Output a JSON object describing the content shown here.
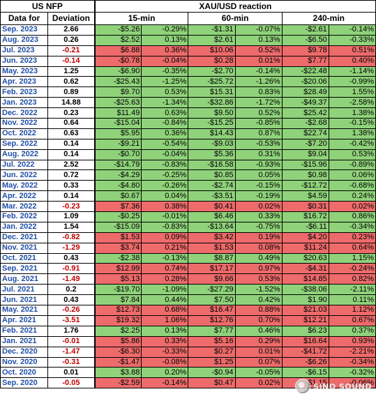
{
  "header": {
    "nfp": "US NFP",
    "reaction": "XAU/USD reaction",
    "date_for": "Data for",
    "deviation": "Deviation",
    "win15": "15-min",
    "win60": "60-min",
    "win240": "240-min"
  },
  "colors": {
    "up": "#8fd27a",
    "down": "#ee6b6b",
    "date_text": "#1f4ea8",
    "negative_deviation": "#c00000"
  },
  "rows": [
    {
      "date": "Sep. 2023",
      "dev": "2.66",
      "m15": "-$5.26",
      "p15": "-0.29%",
      "m60": "-$1.31",
      "p60": "-0.07%",
      "m240": "-$2.61",
      "p240": "-0.14%",
      "c15": "up",
      "c60": "up",
      "c240": "up"
    },
    {
      "date": "Aug. 2023",
      "dev": "0.26",
      "m15": "$2.52",
      "p15": "0.13%",
      "m60": "$2.61",
      "p60": "0.13%",
      "m240": "-$6.50",
      "p240": "-0.33%",
      "c15": "up",
      "c60": "up",
      "c240": "up"
    },
    {
      "date": "Jul. 2023",
      "dev": "-0.21",
      "m15": "$6.88",
      "p15": "0.36%",
      "m60": "$10.06",
      "p60": "0.52%",
      "m240": "$9.78",
      "p240": "0.51%",
      "c15": "down",
      "c60": "down",
      "c240": "down"
    },
    {
      "date": "Jun. 2023",
      "dev": "-0.14",
      "m15": "-$0.78",
      "p15": "-0.04%",
      "m60": "$0.28",
      "p60": "0.01%",
      "m240": "$7.77",
      "p240": "0.40%",
      "c15": "down",
      "c60": "down",
      "c240": "down"
    },
    {
      "date": "May. 2023",
      "dev": "1.25",
      "m15": "-$6.90",
      "p15": "-0.35%",
      "m60": "-$2.70",
      "p60": "-0.14%",
      "m240": "-$22.48",
      "p240": "-1.14%",
      "c15": "up",
      "c60": "up",
      "c240": "up"
    },
    {
      "date": "Apr. 2023",
      "dev": "0.62",
      "m15": "-$25.43",
      "p15": "-1.25%",
      "m60": "-$25.72",
      "p60": "-1.26%",
      "m240": "-$20.06",
      "p240": "-0.99%",
      "c15": "up",
      "c60": "up",
      "c240": "up"
    },
    {
      "date": "Feb. 2023",
      "dev": "0.89",
      "m15": "$9.70",
      "p15": "0.53%",
      "m60": "$15.31",
      "p60": "0.83%",
      "m240": "$28.49",
      "p240": "1.55%",
      "c15": "up",
      "c60": "up",
      "c240": "up"
    },
    {
      "date": "Jan. 2023",
      "dev": "14.88",
      "m15": "-$25.63",
      "p15": "-1.34%",
      "m60": "-$32.86",
      "p60": "-1.72%",
      "m240": "-$49.37",
      "p240": "-2.58%",
      "c15": "up",
      "c60": "up",
      "c240": "up"
    },
    {
      "date": "Dec. 2022",
      "dev": "0.23",
      "m15": "$11.49",
      "p15": "0.63%",
      "m60": "$9.50",
      "p60": "0.52%",
      "m240": "$25.42",
      "p240": "1.38%",
      "c15": "up",
      "c60": "up",
      "c240": "up"
    },
    {
      "date": "Nov. 2022",
      "dev": "0.64",
      "m15": "-$15.04",
      "p15": "-0.84%",
      "m60": "-$15.25",
      "p60": "-0.85%",
      "m240": "-$2.68",
      "p240": "-0.15%",
      "c15": "up",
      "c60": "up",
      "c240": "up"
    },
    {
      "date": "Oct. 2022",
      "dev": "0.63",
      "m15": "$5.95",
      "p15": "0.36%",
      "m60": "$14.43",
      "p60": "0.87%",
      "m240": "$22.74",
      "p240": "1.38%",
      "c15": "up",
      "c60": "up",
      "c240": "up"
    },
    {
      "date": "Sep. 2022",
      "dev": "0.14",
      "m15": "-$9.21",
      "p15": "-0.54%",
      "m60": "-$9.03",
      "p60": "-0.53%",
      "m240": "-$7.20",
      "p240": "-0.42%",
      "c15": "up",
      "c60": "up",
      "c240": "up"
    },
    {
      "date": "Aug. 2022",
      "dev": "0.14",
      "m15": "-$0.70",
      "p15": "-0.04%",
      "m60": "$5.36",
      "p60": "0.31%",
      "m240": "$9.04",
      "p240": "0.53%",
      "c15": "up",
      "c60": "up",
      "c240": "up"
    },
    {
      "date": "Jul. 2022",
      "dev": "2.52",
      "m15": "-$14.79",
      "p15": "-0.83%",
      "m60": "-$16.58",
      "p60": "-0.93%",
      "m240": "-$15.96",
      "p240": "-0.89%",
      "c15": "up",
      "c60": "up",
      "c240": "up"
    },
    {
      "date": "Jun. 2022",
      "dev": "0.72",
      "m15": "-$4.29",
      "p15": "-0.25%",
      "m60": "$0.85",
      "p60": "0.05%",
      "m240": "$0.98",
      "p240": "0.06%",
      "c15": "up",
      "c60": "up",
      "c240": "up"
    },
    {
      "date": "May. 2022",
      "dev": "0.33",
      "m15": "-$4.80",
      "p15": "-0.26%",
      "m60": "-$2.74",
      "p60": "-0.15%",
      "m240": "-$12.72",
      "p240": "-0.68%",
      "c15": "up",
      "c60": "up",
      "c240": "up"
    },
    {
      "date": "Apr. 2022",
      "dev": "0.14",
      "m15": "$0.67",
      "p15": "0.04%",
      "m60": "-$3.51",
      "p60": "-0.19%",
      "m240": "$4.59",
      "p240": "0.24%",
      "c15": "up",
      "c60": "up",
      "c240": "up"
    },
    {
      "date": "Mar. 2022",
      "dev": "-0.23",
      "m15": "$7.36",
      "p15": "0.38%",
      "m60": "$0.41",
      "p60": "0.02%",
      "m240": "$0.31",
      "p240": "0.02%",
      "c15": "down",
      "c60": "down",
      "c240": "down"
    },
    {
      "date": "Feb. 2022",
      "dev": "1.09",
      "m15": "-$0.25",
      "p15": "-0.01%",
      "m60": "$6.46",
      "p60": "0.33%",
      "m240": "$16.72",
      "p240": "0.86%",
      "c15": "up",
      "c60": "up",
      "c240": "up"
    },
    {
      "date": "Jan. 2022",
      "dev": "1.54",
      "m15": "-$15.09",
      "p15": "-0.83%",
      "m60": "-$13.64",
      "p60": "-0.75%",
      "m240": "-$6.11",
      "p240": "-0.34%",
      "c15": "up",
      "c60": "up",
      "c240": "up"
    },
    {
      "date": "Dec. 2021",
      "dev": "-0.82",
      "m15": "$1.53",
      "p15": "0.09%",
      "m60": "$3.42",
      "p60": "0.19%",
      "m240": "$4.20",
      "p240": "0.23%",
      "c15": "down",
      "c60": "down",
      "c240": "down"
    },
    {
      "date": "Nov. 2021",
      "dev": "-1.29",
      "m15": "$3.74",
      "p15": "0.21%",
      "m60": "$1.53",
      "p60": "0.08%",
      "m240": "$11.24",
      "p240": "0.64%",
      "c15": "down",
      "c60": "down",
      "c240": "down"
    },
    {
      "date": "Oct. 2021",
      "dev": "0.43",
      "m15": "-$2.38",
      "p15": "-0.13%",
      "m60": "$8.87",
      "p60": "0.49%",
      "m240": "$20.63",
      "p240": "1.15%",
      "c15": "up",
      "c60": "up",
      "c240": "up"
    },
    {
      "date": "Sep. 2021",
      "dev": "-0.91",
      "m15": "$12.99",
      "p15": "0.74%",
      "m60": "$17.17",
      "p60": "0.97%",
      "m240": "-$4.31",
      "p240": "-0.24%",
      "c15": "down",
      "c60": "down",
      "c240": "down"
    },
    {
      "date": "Aug. 2021",
      "dev": "-1.49",
      "m15": "$5.13",
      "p15": "0.28%",
      "m60": "$9.66",
      "p60": "0.53%",
      "m240": "$14.85",
      "p240": "0.82%",
      "c15": "down",
      "c60": "down",
      "c240": "down"
    },
    {
      "date": "Jul. 2021",
      "dev": "0.2",
      "m15": "-$19.70",
      "p15": "-1.09%",
      "m60": "-$27.29",
      "p60": "-1.52%",
      "m240": "-$38.06",
      "p240": "-2.11%",
      "c15": "up",
      "c60": "up",
      "c240": "up"
    },
    {
      "date": "Jun. 2021",
      "dev": "0.43",
      "m15": "$7.84",
      "p15": "0.44%",
      "m60": "$7.50",
      "p60": "0.42%",
      "m240": "$1.90",
      "p240": "0.11%",
      "c15": "up",
      "c60": "up",
      "c240": "up"
    },
    {
      "date": "May. 2021",
      "dev": "-0.26",
      "m15": "$12.73",
      "p15": "0.68%",
      "m60": "$16.47",
      "p60": "0.88%",
      "m240": "$21.03",
      "p240": "1.12%",
      "c15": "down",
      "c60": "down",
      "c240": "down"
    },
    {
      "date": "Apr. 2021",
      "dev": "-3.51",
      "m15": "$19.32",
      "p15": "1.06%",
      "m60": "$12.76",
      "p60": "0.70%",
      "m240": "$12.21",
      "p240": "0.67%",
      "c15": "down",
      "c60": "down",
      "c240": "down"
    },
    {
      "date": "Feb. 2021",
      "dev": "1.76",
      "m15": "$2.25",
      "p15": "0.13%",
      "m60": "$7.77",
      "p60": "0.46%",
      "m240": "$6.23",
      "p240": "0.37%",
      "c15": "up",
      "c60": "up",
      "c240": "up"
    },
    {
      "date": "Jan. 2021",
      "dev": "-0.01",
      "m15": "$5.86",
      "p15": "0.33%",
      "m60": "$5.16",
      "p60": "0.29%",
      "m240": "$16.64",
      "p240": "0.93%",
      "c15": "down",
      "c60": "down",
      "c240": "down"
    },
    {
      "date": "Dec. 2020",
      "dev": "-1.47",
      "m15": "-$6.30",
      "p15": "-0.33%",
      "m60": "$0.27",
      "p60": "0.01%",
      "m240": "-$41.72",
      "p240": "-2.21%",
      "c15": "down",
      "c60": "down",
      "c240": "down"
    },
    {
      "date": "Nov. 2020",
      "dev": "-0.31",
      "m15": "-$1.47",
      "p15": "-0.08%",
      "m60": "$1.25",
      "p60": "0.07%",
      "m240": "-$6.26",
      "p240": "-0.34%",
      "c15": "down",
      "c60": "down",
      "c240": "down"
    },
    {
      "date": "Oct. 2020",
      "dev": "0.01",
      "m15": "$3.88",
      "p15": "0.20%",
      "m60": "-$0.94",
      "p60": "-0.05%",
      "m240": "-$6.15",
      "p240": "-0.32%",
      "c15": "up",
      "c60": "up",
      "c240": "up"
    },
    {
      "date": "Sep. 2020",
      "dev": "-0.05",
      "m15": "-$2.59",
      "p15": "-0.14%",
      "m60": "$0.47",
      "p60": "0.02%",
      "m240": "-$1.15",
      "p240": "-0.06%",
      "c15": "down",
      "c60": "down",
      "c240": "down"
    }
  ],
  "watermark": {
    "icon": "sino-sound-logo-icon",
    "text": "SINO SOUND"
  }
}
